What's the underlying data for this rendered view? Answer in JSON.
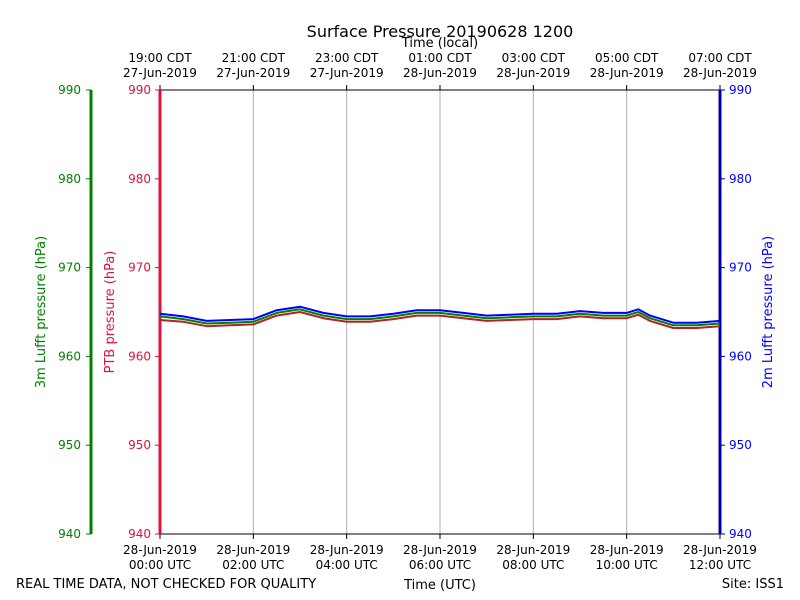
{
  "chart_data": {
    "type": "line",
    "title": "Surface Pressure 20190628 1200",
    "top_axis_label": "Time (local)",
    "xlabel": "Time (UTC)",
    "ylabel_outer_left": "3m Lufft pressure (hPa)",
    "ylabel_left": "PTB pressure (hPa)",
    "ylabel_right": "2m Lufft pressure (hPa)",
    "ylim": [
      940,
      990
    ],
    "yticks": [
      "940",
      "950",
      "960",
      "970",
      "980",
      "990"
    ],
    "xlim_hours": [
      0,
      12
    ],
    "x_ticks_utc": [
      {
        "hour": 0,
        "date": "28-Jun-2019",
        "time": "00:00 UTC"
      },
      {
        "hour": 2,
        "date": "28-Jun-2019",
        "time": "02:00 UTC"
      },
      {
        "hour": 4,
        "date": "28-Jun-2019",
        "time": "04:00 UTC"
      },
      {
        "hour": 6,
        "date": "28-Jun-2019",
        "time": "06:00 UTC"
      },
      {
        "hour": 8,
        "date": "28-Jun-2019",
        "time": "08:00 UTC"
      },
      {
        "hour": 10,
        "date": "28-Jun-2019",
        "time": "10:00 UTC"
      },
      {
        "hour": 12,
        "date": "28-Jun-2019",
        "time": "12:00 UTC"
      }
    ],
    "x_ticks_local": [
      {
        "hour": 0,
        "time": "19:00 CDT",
        "date": "27-Jun-2019"
      },
      {
        "hour": 2,
        "time": "21:00 CDT",
        "date": "27-Jun-2019"
      },
      {
        "hour": 4,
        "time": "23:00 CDT",
        "date": "27-Jun-2019"
      },
      {
        "hour": 6,
        "time": "01:00 CDT",
        "date": "28-Jun-2019"
      },
      {
        "hour": 8,
        "time": "03:00 CDT",
        "date": "28-Jun-2019"
      },
      {
        "hour": 10,
        "time": "05:00 CDT",
        "date": "28-Jun-2019"
      },
      {
        "hour": 12,
        "time": "07:00 CDT",
        "date": "28-Jun-2019"
      }
    ],
    "x": [
      0,
      0.5,
      1,
      1.5,
      2,
      2.5,
      3,
      3.5,
      4,
      4.5,
      5,
      5.5,
      6,
      6.5,
      7,
      7.5,
      8,
      8.5,
      9,
      9.5,
      10,
      10.25,
      10.5,
      11,
      11.5,
      12
    ],
    "series": [
      {
        "name": "PTB pressure",
        "color": "#b22222",
        "values": [
          964.1,
          963.9,
          963.4,
          963.5,
          963.6,
          964.6,
          965.0,
          964.3,
          963.9,
          963.9,
          964.2,
          964.6,
          964.6,
          964.3,
          964.0,
          964.1,
          964.2,
          964.2,
          964.5,
          964.3,
          964.3,
          964.7,
          964.0,
          963.2,
          963.2,
          963.4
        ]
      },
      {
        "name": "3m Lufft pressure",
        "color": "#008000",
        "values": [
          964.5,
          964.2,
          963.7,
          963.8,
          963.9,
          964.9,
          965.3,
          964.6,
          964.2,
          964.2,
          964.5,
          964.9,
          964.9,
          964.6,
          964.3,
          964.4,
          964.5,
          964.5,
          964.8,
          964.6,
          964.6,
          965.0,
          964.3,
          963.5,
          963.5,
          963.7
        ]
      },
      {
        "name": "2m Lufft pressure",
        "color": "#0000ff",
        "values": [
          964.8,
          964.5,
          964.0,
          964.1,
          964.2,
          965.2,
          965.6,
          964.9,
          964.5,
          964.5,
          964.8,
          965.2,
          965.2,
          964.9,
          964.6,
          964.7,
          964.8,
          964.8,
          965.1,
          964.9,
          964.9,
          965.3,
          964.6,
          963.8,
          963.8,
          964.0
        ]
      }
    ],
    "grid": "vertical",
    "left_axis_color": "#dc143c",
    "outer_axis_color": "#008000",
    "right_axis_color": "#0000aa"
  },
  "footer": {
    "quality_note": "REAL TIME DATA, NOT CHECKED FOR QUALITY",
    "site": "Site: ISS1"
  }
}
